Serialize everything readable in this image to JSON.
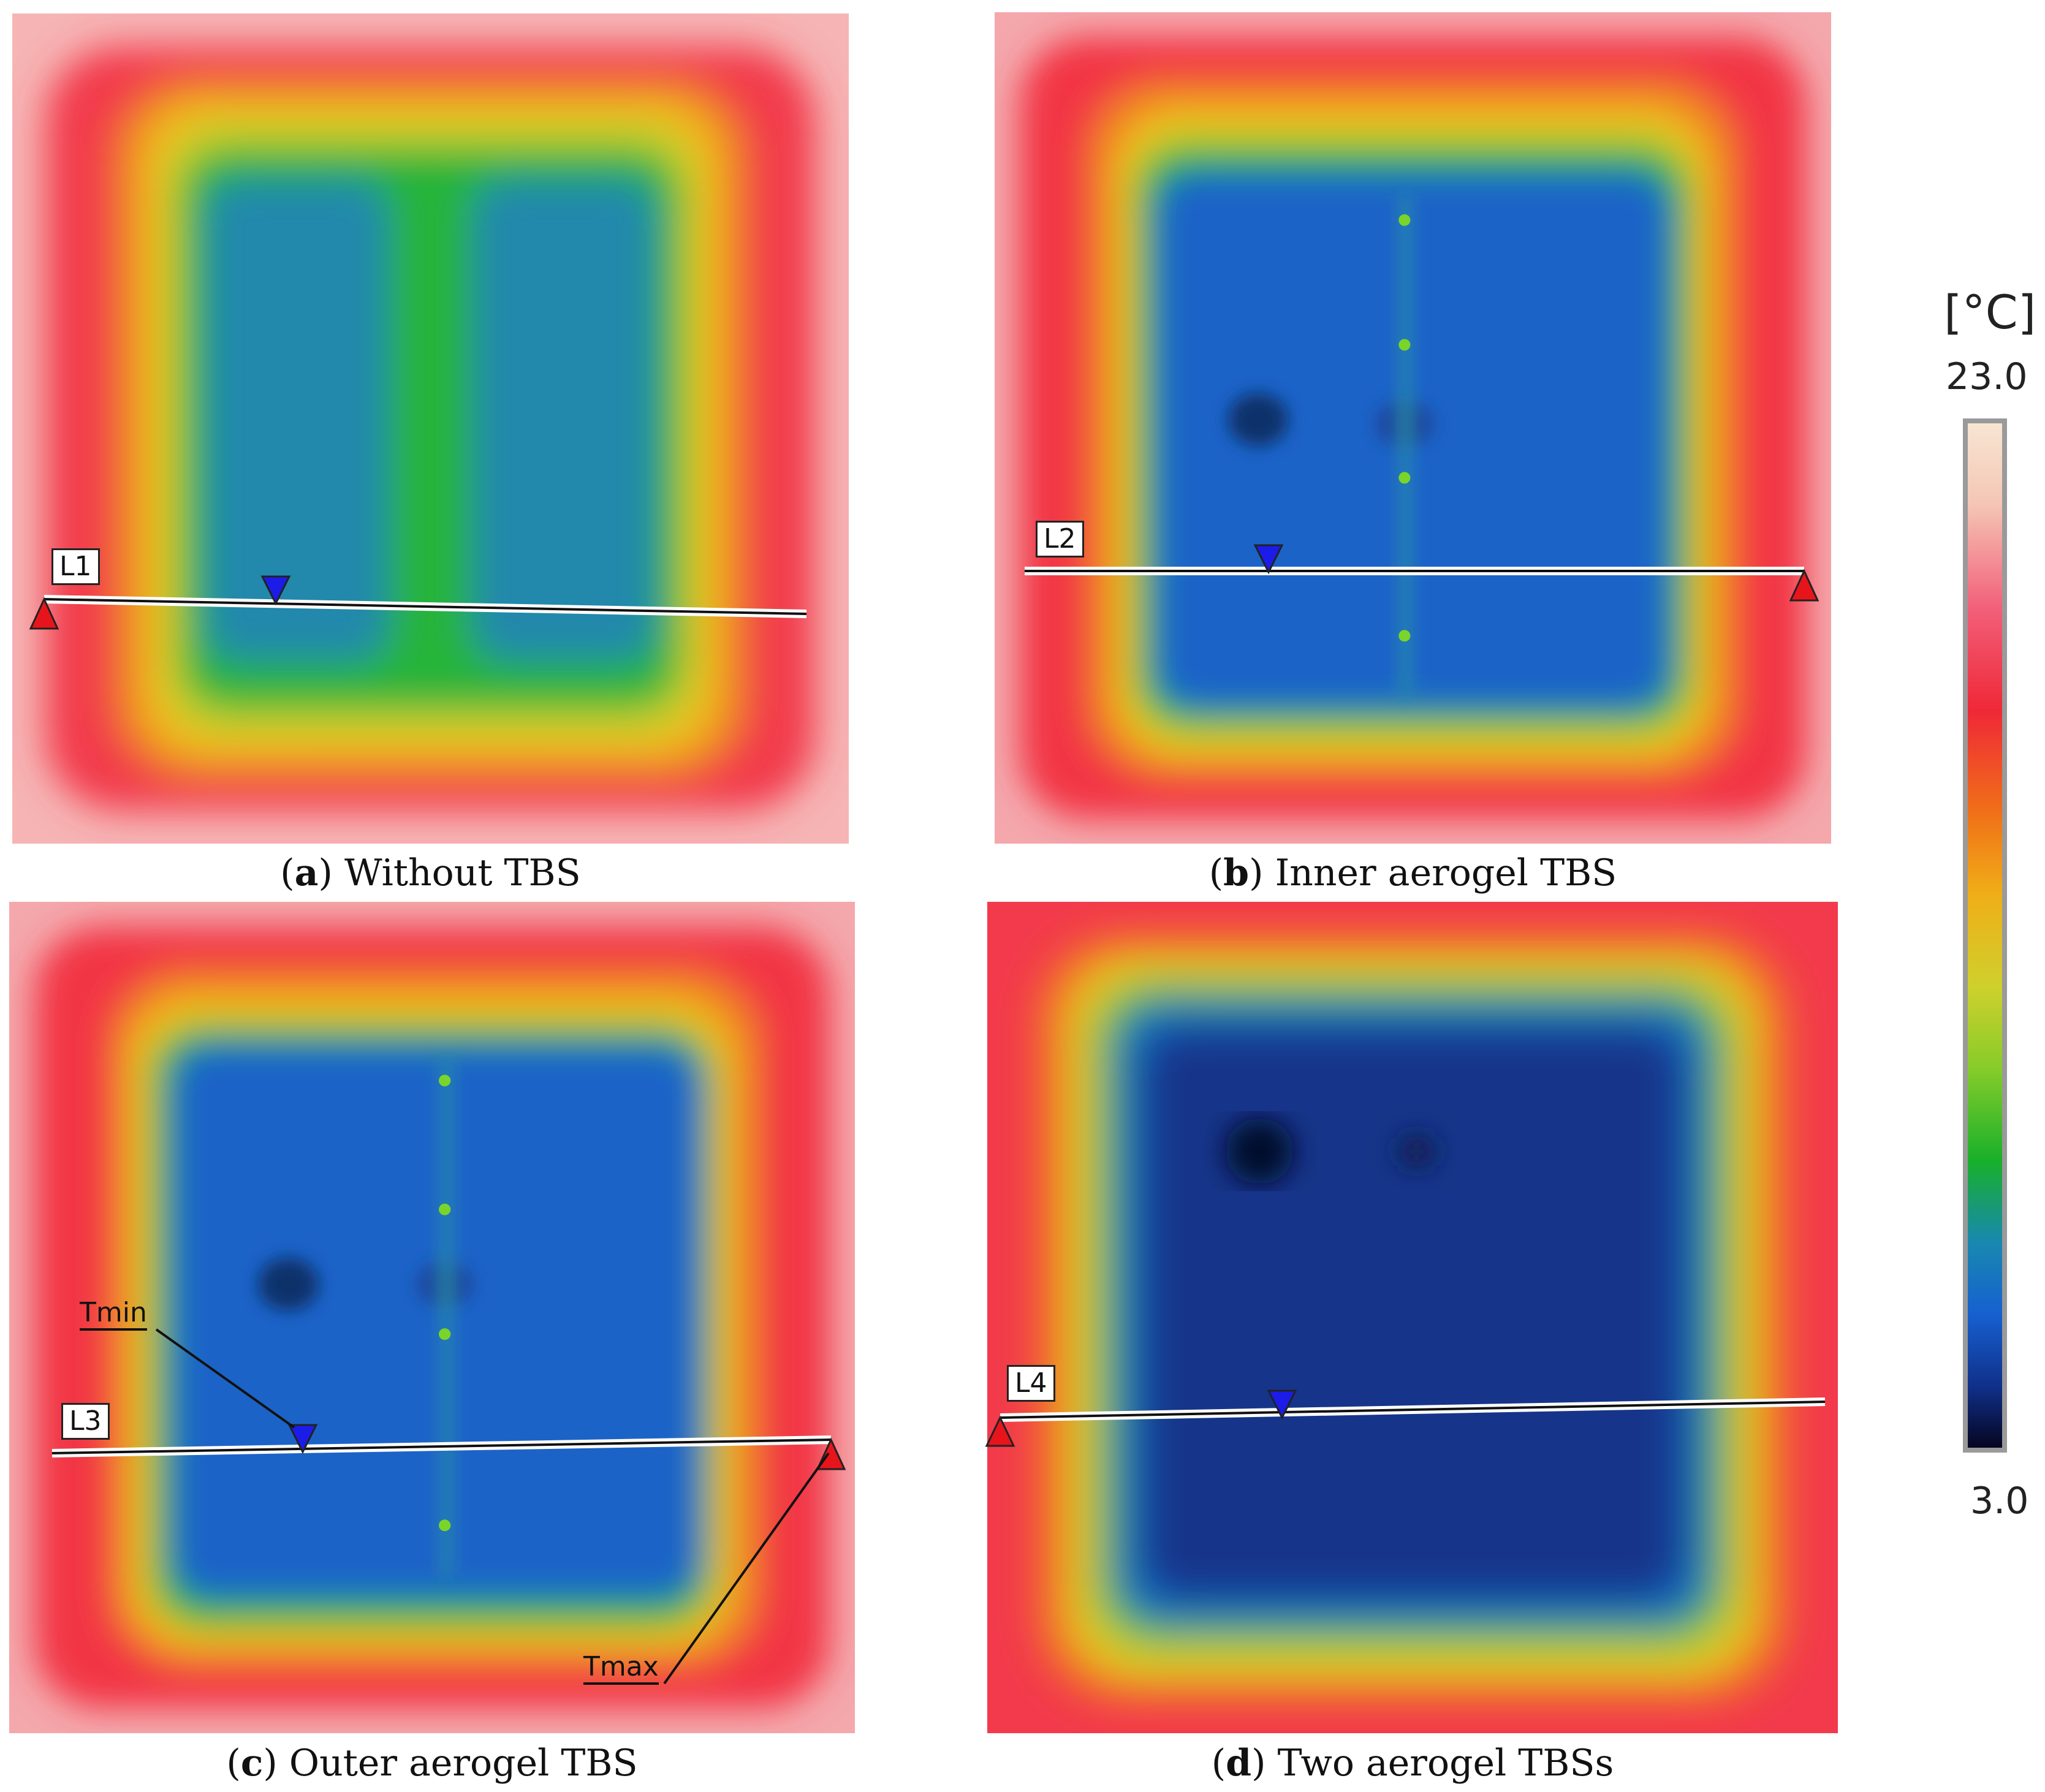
{
  "panels": [
    {
      "letter": "a",
      "title": "Without TBS",
      "line_label": "L1",
      "variant": "none"
    },
    {
      "letter": "b",
      "title": "Inner aerogel TBS",
      "line_label": "L2",
      "variant": "inner"
    },
    {
      "letter": "c",
      "title": "Outer aerogel TBS",
      "line_label": "L3",
      "variant": "outer"
    },
    {
      "letter": "d",
      "title": "Two aerogel TBSs",
      "line_label": "L4",
      "variant": "two"
    }
  ],
  "annotations": {
    "tmin": "Tmin",
    "tmax": "Tmax"
  },
  "colorbar": {
    "unit": "[°C]",
    "max": "23.0",
    "min": "3.0"
  },
  "colors": {
    "max_marker": "#e8141c",
    "min_marker": "#1c1ce8",
    "hot": "#f23a4c",
    "cold": "#1a58c8"
  }
}
